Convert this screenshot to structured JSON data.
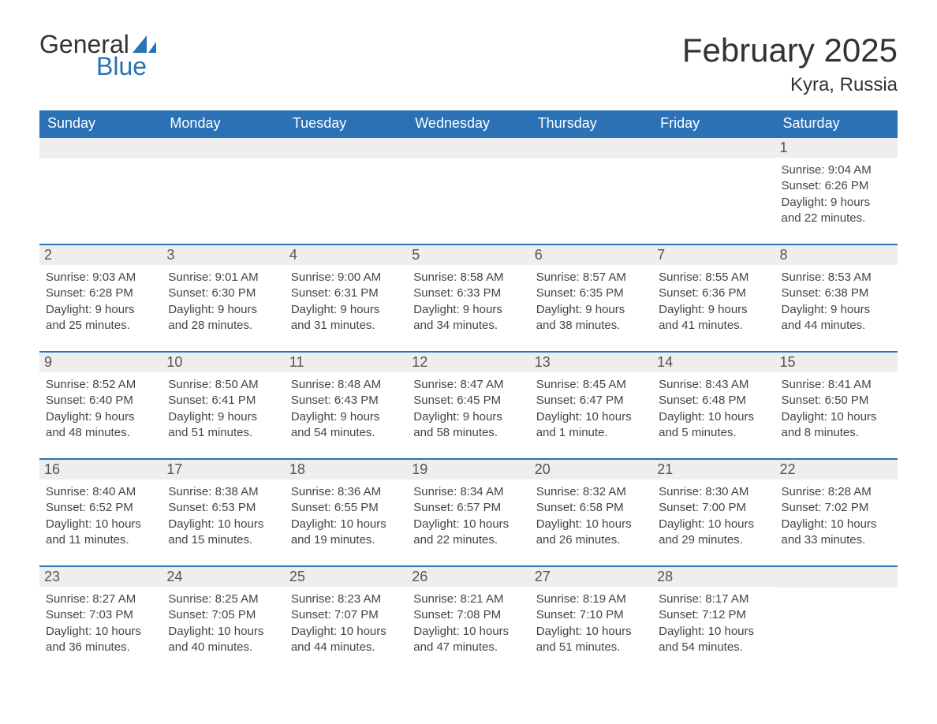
{
  "logo": {
    "word1": "General",
    "word2": "Blue",
    "icon_color": "#2a72b5"
  },
  "title": "February 2025",
  "location": "Kyra, Russia",
  "colors": {
    "header_bg": "#2a72b5",
    "header_text": "#ffffff",
    "daynum_bg": "#eeeeee",
    "row_border": "#2a72b5",
    "text": "#333333"
  },
  "day_headers": [
    "Sunday",
    "Monday",
    "Tuesday",
    "Wednesday",
    "Thursday",
    "Friday",
    "Saturday"
  ],
  "weeks": [
    [
      null,
      null,
      null,
      null,
      null,
      null,
      {
        "n": "1",
        "sunrise": "9:04 AM",
        "sunset": "6:26 PM",
        "daylight": "9 hours and 22 minutes."
      }
    ],
    [
      {
        "n": "2",
        "sunrise": "9:03 AM",
        "sunset": "6:28 PM",
        "daylight": "9 hours and 25 minutes."
      },
      {
        "n": "3",
        "sunrise": "9:01 AM",
        "sunset": "6:30 PM",
        "daylight": "9 hours and 28 minutes."
      },
      {
        "n": "4",
        "sunrise": "9:00 AM",
        "sunset": "6:31 PM",
        "daylight": "9 hours and 31 minutes."
      },
      {
        "n": "5",
        "sunrise": "8:58 AM",
        "sunset": "6:33 PM",
        "daylight": "9 hours and 34 minutes."
      },
      {
        "n": "6",
        "sunrise": "8:57 AM",
        "sunset": "6:35 PM",
        "daylight": "9 hours and 38 minutes."
      },
      {
        "n": "7",
        "sunrise": "8:55 AM",
        "sunset": "6:36 PM",
        "daylight": "9 hours and 41 minutes."
      },
      {
        "n": "8",
        "sunrise": "8:53 AM",
        "sunset": "6:38 PM",
        "daylight": "9 hours and 44 minutes."
      }
    ],
    [
      {
        "n": "9",
        "sunrise": "8:52 AM",
        "sunset": "6:40 PM",
        "daylight": "9 hours and 48 minutes."
      },
      {
        "n": "10",
        "sunrise": "8:50 AM",
        "sunset": "6:41 PM",
        "daylight": "9 hours and 51 minutes."
      },
      {
        "n": "11",
        "sunrise": "8:48 AM",
        "sunset": "6:43 PM",
        "daylight": "9 hours and 54 minutes."
      },
      {
        "n": "12",
        "sunrise": "8:47 AM",
        "sunset": "6:45 PM",
        "daylight": "9 hours and 58 minutes."
      },
      {
        "n": "13",
        "sunrise": "8:45 AM",
        "sunset": "6:47 PM",
        "daylight": "10 hours and 1 minute."
      },
      {
        "n": "14",
        "sunrise": "8:43 AM",
        "sunset": "6:48 PM",
        "daylight": "10 hours and 5 minutes."
      },
      {
        "n": "15",
        "sunrise": "8:41 AM",
        "sunset": "6:50 PM",
        "daylight": "10 hours and 8 minutes."
      }
    ],
    [
      {
        "n": "16",
        "sunrise": "8:40 AM",
        "sunset": "6:52 PM",
        "daylight": "10 hours and 11 minutes."
      },
      {
        "n": "17",
        "sunrise": "8:38 AM",
        "sunset": "6:53 PM",
        "daylight": "10 hours and 15 minutes."
      },
      {
        "n": "18",
        "sunrise": "8:36 AM",
        "sunset": "6:55 PM",
        "daylight": "10 hours and 19 minutes."
      },
      {
        "n": "19",
        "sunrise": "8:34 AM",
        "sunset": "6:57 PM",
        "daylight": "10 hours and 22 minutes."
      },
      {
        "n": "20",
        "sunrise": "8:32 AM",
        "sunset": "6:58 PM",
        "daylight": "10 hours and 26 minutes."
      },
      {
        "n": "21",
        "sunrise": "8:30 AM",
        "sunset": "7:00 PM",
        "daylight": "10 hours and 29 minutes."
      },
      {
        "n": "22",
        "sunrise": "8:28 AM",
        "sunset": "7:02 PM",
        "daylight": "10 hours and 33 minutes."
      }
    ],
    [
      {
        "n": "23",
        "sunrise": "8:27 AM",
        "sunset": "7:03 PM",
        "daylight": "10 hours and 36 minutes."
      },
      {
        "n": "24",
        "sunrise": "8:25 AM",
        "sunset": "7:05 PM",
        "daylight": "10 hours and 40 minutes."
      },
      {
        "n": "25",
        "sunrise": "8:23 AM",
        "sunset": "7:07 PM",
        "daylight": "10 hours and 44 minutes."
      },
      {
        "n": "26",
        "sunrise": "8:21 AM",
        "sunset": "7:08 PM",
        "daylight": "10 hours and 47 minutes."
      },
      {
        "n": "27",
        "sunrise": "8:19 AM",
        "sunset": "7:10 PM",
        "daylight": "10 hours and 51 minutes."
      },
      {
        "n": "28",
        "sunrise": "8:17 AM",
        "sunset": "7:12 PM",
        "daylight": "10 hours and 54 minutes."
      },
      null
    ]
  ]
}
